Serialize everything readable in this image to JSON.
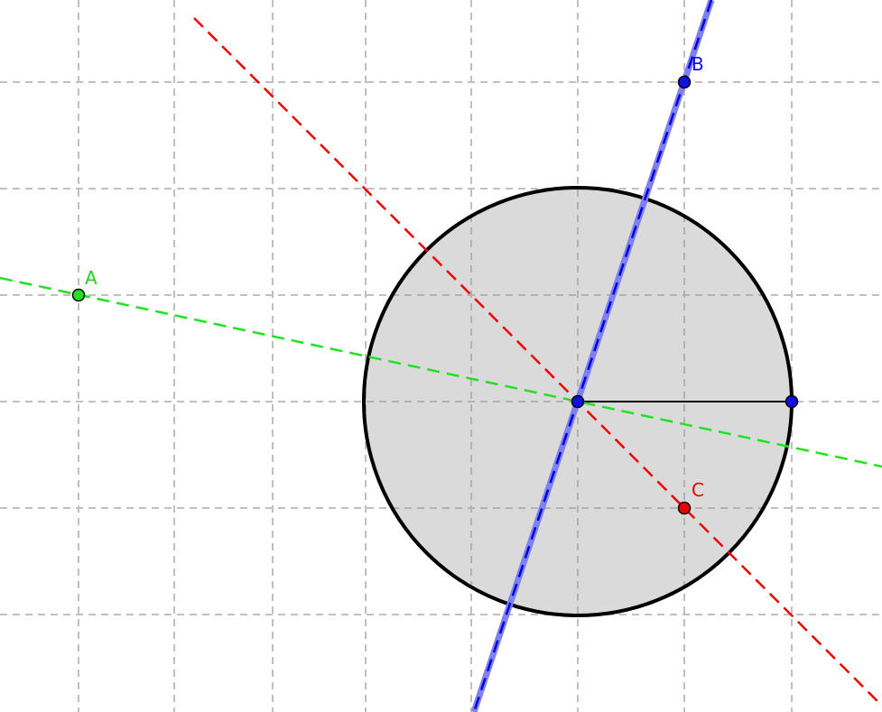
{
  "points": [
    {
      "label": "A"
    },
    {
      "label": "B"
    },
    {
      "label": "C"
    }
  ]
}
